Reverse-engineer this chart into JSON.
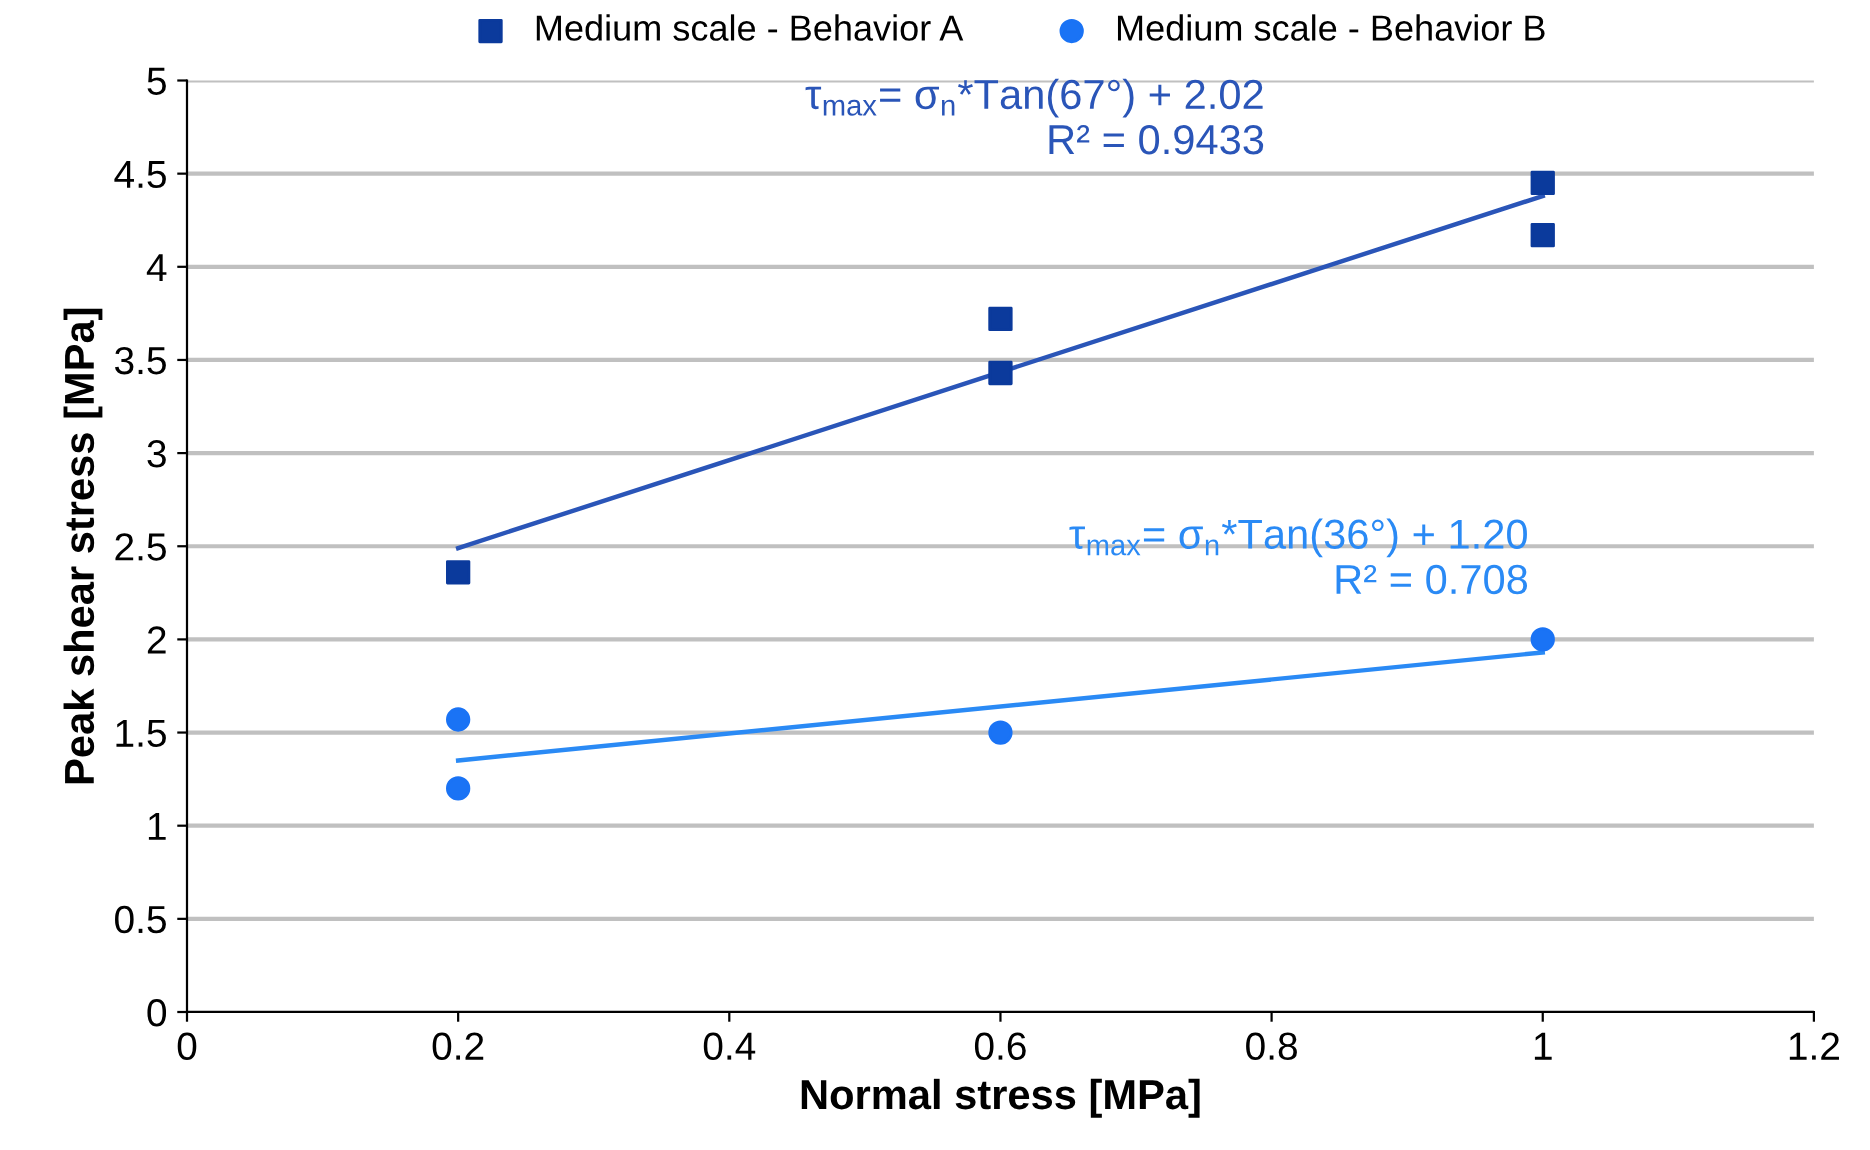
{
  "chart_data": {
    "type": "scatter",
    "xlabel": "Normal stress [MPa]",
    "ylabel": "Peak shear stress [MPa]",
    "xlim": [
      0,
      1.2
    ],
    "xticks": [
      0,
      0.2,
      0.4,
      0.6,
      0.8,
      1,
      1.2
    ],
    "ylim": [
      0,
      5
    ],
    "yticks": [
      0,
      0.5,
      1,
      1.5,
      2,
      2.5,
      3,
      3.5,
      4,
      4.5,
      5
    ],
    "grid": "y",
    "legend": "top",
    "series": [
      {
        "name": "Medium scale - Behavior A",
        "color": "#0b3a9c",
        "marker": "square",
        "x": [
          0.2,
          0.6,
          0.6,
          1,
          1
        ],
        "values": [
          2.36,
          3.72,
          3.43,
          4.45,
          4.17
        ]
      },
      {
        "name": "Medium scale - Behavior B",
        "color": "#1a73f5",
        "marker": "circle",
        "x": [
          0.2,
          0.2,
          0.6,
          1
        ],
        "values": [
          1.57,
          1.2,
          1.5,
          2.0
        ]
      },
      {
        "type": "line",
        "color": "#2a55b8",
        "marker": "none",
        "x": [
          0.2,
          1
        ],
        "values": [
          2.49,
          4.38
        ]
      },
      {
        "type": "line",
        "color": "#2a8af5",
        "marker": "none",
        "x": [
          0.2,
          1
        ],
        "values": [
          1.35,
          1.93
        ]
      }
    ],
    "annotations": [
      "τ$_{max}$= σ$_{n}$*Tan(67°) + 2.02\nR² = 0.9433",
      "τ$_{max}$= σ$_{n}$*Tan(36°) + 1.20\nR² = 0.708"
    ]
  }
}
